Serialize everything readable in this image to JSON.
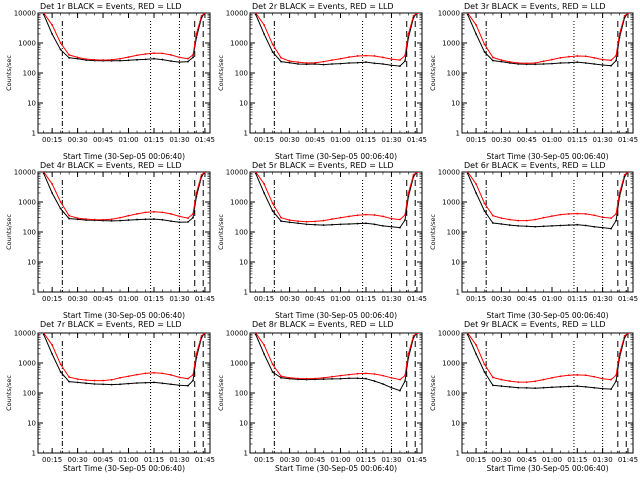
{
  "colors": {
    "events": "#000000",
    "lld": "#ff0000",
    "axes": "#000000",
    "markers": "#000000"
  },
  "chart_data": {
    "type": "line",
    "yscale": "log",
    "ylim": [
      1,
      10000
    ],
    "xlim": [
      "00:06:40",
      "01:48:00"
    ],
    "x_ticks": [
      "00:15",
      "00:30",
      "00:45",
      "01:00",
      "01:15",
      "01:30",
      "01:45"
    ],
    "y_ticks": [
      "1",
      "10",
      "100",
      "1000",
      "10000"
    ],
    "grid": false,
    "ylabel": "Counts/sec",
    "xlabel": "Start Time (30-Sep-05 00:06:40)",
    "time_x": [
      "00:10",
      "00:15",
      "00:20",
      "00:25",
      "00:30",
      "00:35",
      "00:40",
      "00:45",
      "00:50",
      "00:55",
      "01:00",
      "01:05",
      "01:10",
      "01:15",
      "01:20",
      "01:25",
      "01:30",
      "01:35",
      "01:38",
      "01:40",
      "01:43",
      "01:45"
    ],
    "vertical_markers": {
      "dashdot": [
        "00:21:00"
      ],
      "dotted": [
        "01:13:00",
        "01:30:00"
      ],
      "dashed": [
        "01:39:00",
        "01:44:00"
      ]
    },
    "panels": [
      {
        "title": "Det 1r BLACK = Events, RED = LLD",
        "events": [
          9000,
          2000,
          600,
          320,
          300,
          270,
          260,
          255,
          255,
          258,
          265,
          275,
          285,
          300,
          280,
          250,
          230,
          240,
          330,
          1500,
          7000,
          10000
        ],
        "lld": [
          10000,
          4000,
          1000,
          400,
          330,
          290,
          275,
          270,
          275,
          300,
          340,
          390,
          430,
          460,
          450,
          400,
          330,
          300,
          400,
          2000,
          8000,
          10000
        ]
      },
      {
        "title": "Det 2r BLACK = Events, RED = LLD",
        "events": [
          9000,
          2000,
          500,
          240,
          220,
          200,
          195,
          200,
          190,
          200,
          205,
          215,
          220,
          230,
          210,
          200,
          180,
          170,
          250,
          1500,
          7000,
          10000
        ],
        "lld": [
          10000,
          4000,
          900,
          320,
          250,
          230,
          215,
          220,
          240,
          270,
          300,
          340,
          370,
          380,
          370,
          330,
          290,
          270,
          380,
          2000,
          8000,
          10000
        ]
      },
      {
        "title": "Det 3r BLACK = Events, RED = LLD",
        "events": [
          9000,
          2000,
          500,
          260,
          240,
          215,
          200,
          195,
          195,
          200,
          205,
          215,
          220,
          230,
          215,
          200,
          185,
          175,
          260,
          1500,
          7000,
          10000
        ],
        "lld": [
          10000,
          4000,
          900,
          330,
          270,
          235,
          215,
          210,
          215,
          245,
          280,
          320,
          350,
          370,
          360,
          320,
          280,
          265,
          380,
          2000,
          8000,
          10000
        ]
      },
      {
        "title": "Det 4r BLACK = Events, RED = LLD",
        "events": [
          9000,
          2000,
          600,
          280,
          265,
          250,
          245,
          240,
          235,
          240,
          250,
          260,
          265,
          270,
          255,
          230,
          210,
          215,
          300,
          1500,
          7000,
          10000
        ],
        "lld": [
          10000,
          4000,
          1000,
          350,
          290,
          270,
          260,
          255,
          265,
          300,
          350,
          400,
          450,
          470,
          450,
          400,
          330,
          290,
          400,
          2000,
          8000,
          10000
        ]
      },
      {
        "title": "Det 5r BLACK = Events, RED = LLD",
        "events": [
          9000,
          2000,
          500,
          230,
          210,
          195,
          180,
          175,
          170,
          175,
          180,
          185,
          190,
          195,
          180,
          160,
          150,
          140,
          250,
          1500,
          7000,
          10000
        ],
        "lld": [
          10000,
          4000,
          900,
          300,
          250,
          230,
          220,
          225,
          240,
          270,
          300,
          330,
          360,
          380,
          370,
          330,
          280,
          260,
          370,
          2000,
          8000,
          10000
        ]
      },
      {
        "title": "Det 6r BLACK = Events, RED = LLD",
        "events": [
          9000,
          2000,
          500,
          200,
          185,
          170,
          160,
          155,
          150,
          155,
          160,
          165,
          170,
          175,
          165,
          150,
          140,
          130,
          240,
          1500,
          7000,
          10000
        ],
        "lld": [
          10000,
          4000,
          900,
          350,
          290,
          260,
          240,
          240,
          260,
          300,
          340,
          380,
          400,
          410,
          400,
          360,
          310,
          290,
          400,
          2000,
          8000,
          10000
        ]
      },
      {
        "title": "Det 7r BLACK = Events, RED = LLD",
        "events": [
          9000,
          2000,
          500,
          240,
          225,
          210,
          200,
          195,
          190,
          195,
          205,
          215,
          220,
          225,
          210,
          195,
          180,
          175,
          260,
          1500,
          7000,
          10000
        ],
        "lld": [
          10000,
          4000,
          900,
          340,
          290,
          270,
          260,
          260,
          275,
          320,
          360,
          410,
          450,
          470,
          450,
          400,
          330,
          300,
          400,
          2000,
          8000,
          10000
        ]
      },
      {
        "title": "Det 8r BLACK = Events, RED = LLD",
        "events": [
          9000,
          2000,
          500,
          320,
          300,
          285,
          280,
          285,
          290,
          295,
          300,
          310,
          310,
          300,
          250,
          200,
          150,
          120,
          250,
          1500,
          7000,
          10000
        ],
        "lld": [
          10000,
          4000,
          900,
          360,
          320,
          305,
          300,
          305,
          320,
          350,
          380,
          410,
          440,
          450,
          430,
          380,
          320,
          280,
          380,
          2000,
          8000,
          10000
        ]
      },
      {
        "title": "Det 9r BLACK = Events, RED = LLD",
        "events": [
          9000,
          2000,
          500,
          180,
          170,
          160,
          150,
          148,
          145,
          150,
          155,
          160,
          165,
          170,
          160,
          150,
          140,
          135,
          250,
          1500,
          7000,
          10000
        ],
        "lld": [
          10000,
          4000,
          900,
          330,
          280,
          250,
          230,
          230,
          245,
          280,
          320,
          360,
          390,
          400,
          390,
          350,
          300,
          280,
          390,
          2000,
          8000,
          10000
        ]
      }
    ]
  }
}
